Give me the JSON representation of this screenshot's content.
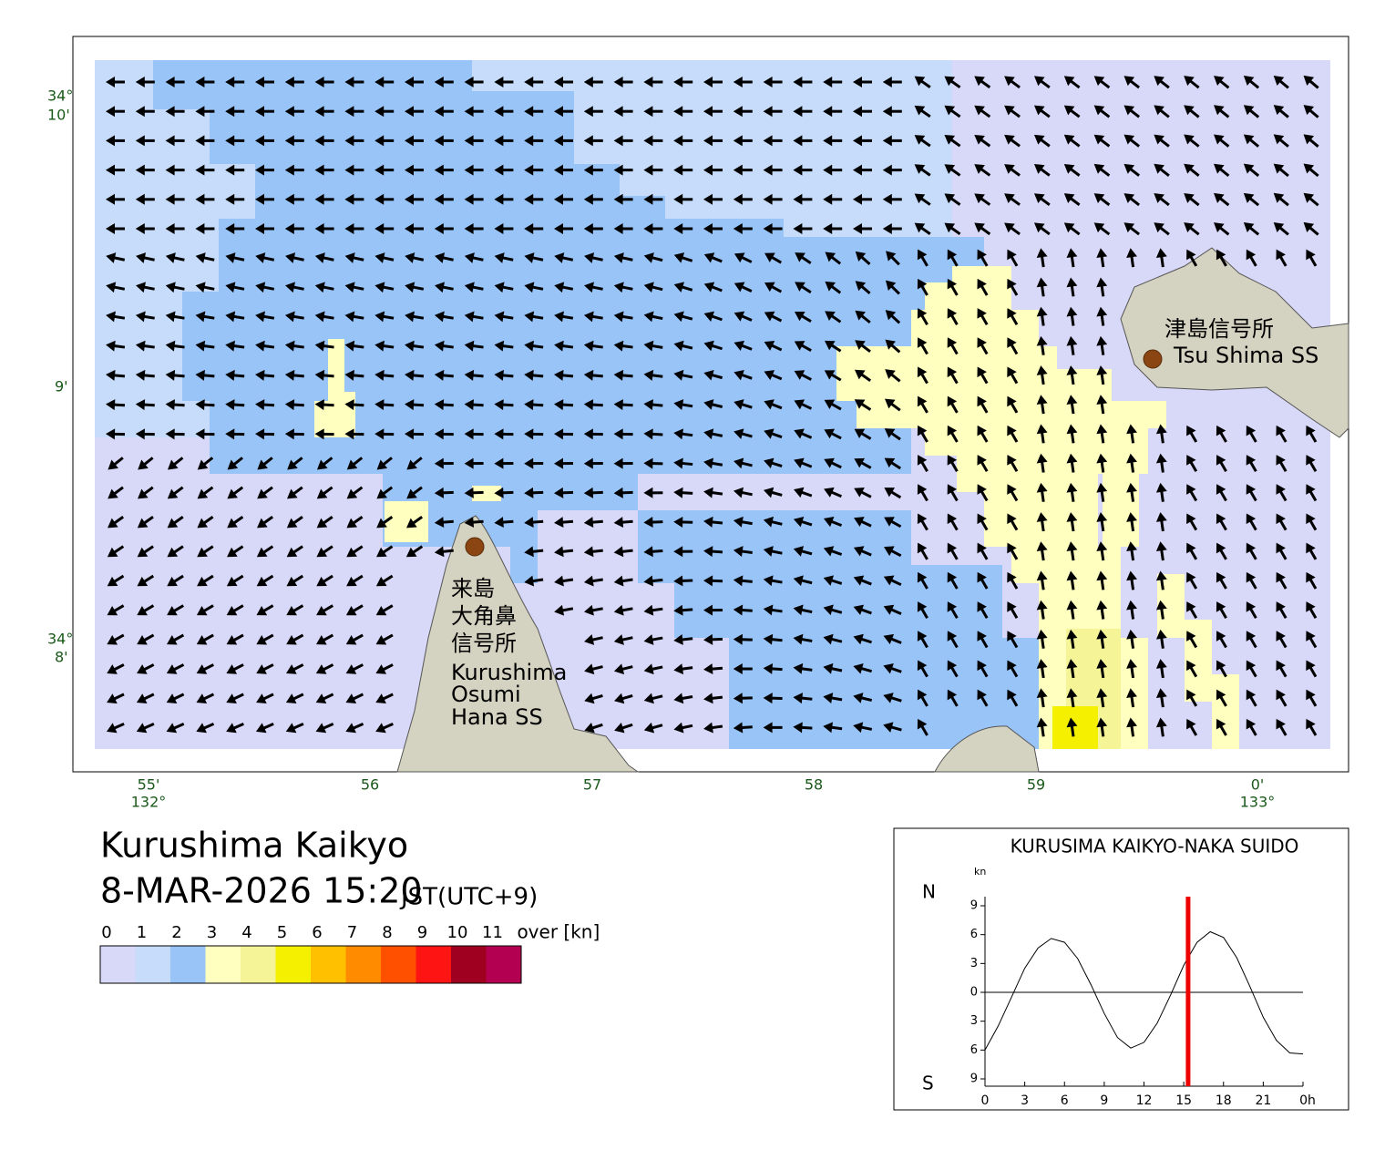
{
  "title": "Kurushima Kaikyo",
  "datetime": "8-MAR-2026 15:20",
  "timezone": "JST(UTC+9)",
  "map": {
    "lat_labels": [
      "34°",
      "10'",
      "9'",
      "34°",
      "8'"
    ],
    "lon_labels": [
      "55'",
      "132°",
      "56",
      "57",
      "58",
      "59",
      "0'",
      "133°"
    ],
    "places": [
      "津島信号所",
      "Tsu Shima SS",
      "来島",
      "大角鼻",
      "信号所",
      "Kurushima",
      "Osumi",
      "Hana SS"
    ]
  },
  "legend": {
    "ticks": [
      0,
      1,
      2,
      3,
      4,
      5,
      6,
      7,
      8,
      9,
      10,
      11
    ],
    "unit": "over [kn]",
    "colors": [
      "#d8d8f8",
      "#c6dcfa",
      "#99c4f8",
      "#ffffc0",
      "#f5f598",
      "#f5f000",
      "#ffc000",
      "#ff8c00",
      "#ff5000",
      "#ff1414",
      "#a00020",
      "#b40050"
    ]
  },
  "chart_data": {
    "type": "line",
    "title": "KURUSIMA KAIKYO-NAKA SUIDO",
    "y_unit": "kn",
    "north_label": "N",
    "south_label": "S",
    "x": [
      0,
      1,
      2,
      3,
      4,
      5,
      6,
      7,
      8,
      9,
      10,
      11,
      12,
      13,
      14,
      15,
      16,
      17,
      18,
      19,
      20,
      21,
      22,
      23,
      24
    ],
    "values": [
      -6,
      -3.5,
      -0.5,
      2.5,
      4.6,
      5.6,
      5.2,
      3.5,
      0.8,
      -2.2,
      -4.7,
      -5.8,
      -5.2,
      -3.2,
      -0.3,
      2.8,
      5.2,
      6.3,
      5.7,
      3.6,
      0.6,
      -2.6,
      -5,
      -6.3,
      -6.4
    ],
    "color": "#000000",
    "marker_x": 15.33,
    "marker_color": "#ee0000",
    "xlim": [
      0,
      24
    ],
    "ylim": [
      -9,
      9
    ],
    "xticks": [
      0,
      3,
      6,
      9,
      12,
      15,
      18,
      21,
      {
        "value": 24,
        "label": "0h"
      }
    ],
    "yticks": [
      {
        "value": 9,
        "label": "9"
      },
      6,
      3,
      0,
      {
        "value": -3,
        "label": "3"
      },
      {
        "value": -6,
        "label": "6"
      },
      {
        "value": -9,
        "label": "9"
      }
    ]
  }
}
